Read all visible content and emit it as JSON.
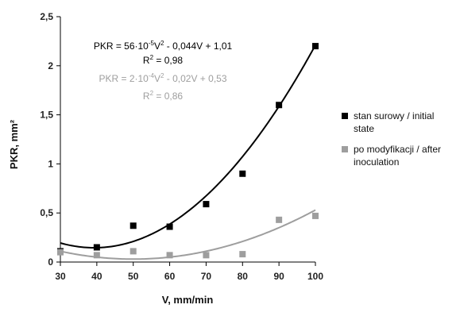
{
  "chart_data": {
    "type": "scatter",
    "xlabel": "V, mm/min",
    "ylabel": "PKR, mm²",
    "xlim": [
      30,
      100
    ],
    "ylim": [
      0,
      2.5
    ],
    "x_ticks": [
      "30",
      "40",
      "50",
      "60",
      "70",
      "80",
      "90",
      "100"
    ],
    "y_ticks": [
      "0",
      "0,5",
      "1",
      "1,5",
      "2",
      "2,5"
    ],
    "grid": false,
    "legend_position": "right",
    "series": [
      {
        "name": "stan surowy / initial state",
        "legend_lines": [
          "stan surowy / initial",
          "state"
        ],
        "color": "#000000",
        "marker": "square",
        "x": [
          30,
          40,
          50,
          60,
          70,
          80,
          90,
          100
        ],
        "y": [
          0.11,
          0.15,
          0.37,
          0.36,
          0.59,
          0.9,
          1.6,
          2.2
        ],
        "trend": {
          "type": "poly2",
          "a": 0.00056,
          "b": -0.044,
          "c": 1.01
        },
        "equation": {
          "prefix": "PKR = 56·10",
          "exp": "-5",
          "mid": "V",
          "exp2": "2",
          "suffix": " - 0,044V + 1,01"
        },
        "r2": {
          "label": "R",
          "exp": "2",
          "value": " = 0,98"
        }
      },
      {
        "name": "po modyfikacji / after inoculation",
        "legend_lines": [
          "po modyfikacji / after",
          "inoculation"
        ],
        "color": "#9e9e9e",
        "marker": "square",
        "x": [
          30,
          40,
          50,
          60,
          70,
          80,
          90,
          100
        ],
        "y": [
          0.1,
          0.07,
          0.11,
          0.07,
          0.07,
          0.08,
          0.43,
          0.47
        ],
        "trend": {
          "type": "poly2",
          "a": 0.0002,
          "b": -0.02,
          "c": 0.53
        },
        "equation": {
          "prefix": "PKR = 2·10",
          "exp": "-4",
          "mid": "V",
          "exp2": "2",
          "suffix": " - 0,02V + 0,53"
        },
        "r2": {
          "label": "R",
          "exp": "2",
          "value": " = 0,86"
        }
      }
    ]
  }
}
